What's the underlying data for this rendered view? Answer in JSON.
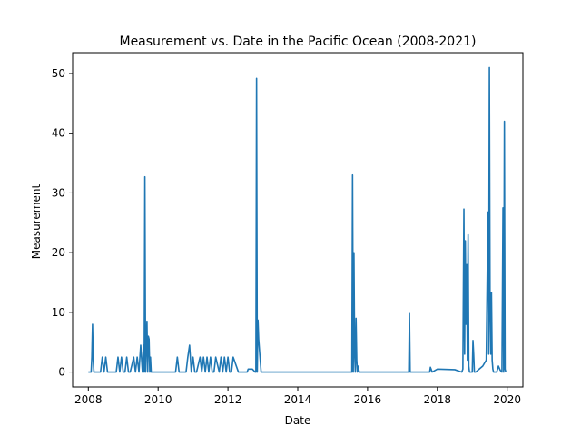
{
  "chart_data": {
    "type": "line",
    "title": "Measurement vs. Date in the Pacific Ocean (2008-2021)",
    "xlabel": "Date",
    "ylabel": "Measurement",
    "xlim": [
      2007.55,
      2020.45
    ],
    "ylim": [
      -2.5,
      53.5
    ],
    "xticks": [
      2008,
      2010,
      2012,
      2014,
      2016,
      2018,
      2020
    ],
    "xtick_labels": [
      "2008",
      "2010",
      "2012",
      "2014",
      "2016",
      "2018",
      "2020"
    ],
    "yticks": [
      0,
      10,
      20,
      30,
      40,
      50
    ],
    "ytick_labels": [
      "0",
      "10",
      "20",
      "30",
      "40",
      "50"
    ],
    "grid": false,
    "legend": "none",
    "series": [
      {
        "color": "#1f77b4",
        "x": [
          2008.0,
          2008.08,
          2008.1,
          2008.12,
          2008.14,
          2008.16,
          2008.18,
          2008.2,
          2008.35,
          2008.4,
          2008.45,
          2008.5,
          2008.55,
          2008.8,
          2008.85,
          2008.9,
          2008.95,
          2009.0,
          2009.05,
          2009.1,
          2009.15,
          2009.2,
          2009.3,
          2009.35,
          2009.4,
          2009.45,
          2009.5,
          2009.55,
          2009.58,
          2009.6,
          2009.62,
          2009.64,
          2009.66,
          2009.68,
          2009.7,
          2009.72,
          2009.74,
          2009.76,
          2009.78,
          2009.8,
          2009.82,
          2009.84,
          2009.86,
          2009.88,
          2009.9,
          2010.0,
          2010.5,
          2010.55,
          2010.6,
          2010.8,
          2010.85,
          2010.9,
          2010.95,
          2011.0,
          2011.05,
          2011.1,
          2011.2,
          2011.25,
          2011.3,
          2011.35,
          2011.4,
          2011.45,
          2011.5,
          2011.55,
          2011.6,
          2011.65,
          2011.75,
          2011.8,
          2011.85,
          2011.9,
          2011.95,
          2012.0,
          2012.05,
          2012.1,
          2012.15,
          2012.3,
          2012.45,
          2012.55,
          2012.58,
          2012.7,
          2012.78,
          2012.8,
          2012.82,
          2012.84,
          2012.86,
          2012.88,
          2012.95,
          2013.5,
          2014.0,
          2014.3,
          2015.0,
          2015.5,
          2015.55,
          2015.57,
          2015.59,
          2015.61,
          2015.63,
          2015.65,
          2015.67,
          2015.69,
          2015.71,
          2015.73,
          2015.76,
          2016.0,
          2016.5,
          2017.0,
          2017.18,
          2017.2,
          2017.22,
          2017.24,
          2017.3,
          2017.75,
          2017.78,
          2017.8,
          2017.82,
          2017.85,
          2018.0,
          2018.5,
          2018.7,
          2018.73,
          2018.76,
          2018.78,
          2018.8,
          2018.82,
          2018.84,
          2018.86,
          2018.88,
          2018.9,
          2018.92,
          2018.94,
          2018.96,
          2018.98,
          2019.0,
          2019.02,
          2019.04,
          2019.06,
          2019.1,
          2019.2,
          2019.3,
          2019.4,
          2019.45,
          2019.47,
          2019.49,
          2019.51,
          2019.53,
          2019.55,
          2019.57,
          2019.59,
          2019.61,
          2019.63,
          2019.65,
          2019.7,
          2019.75,
          2019.8,
          2019.85,
          2019.88,
          2019.9,
          2019.92,
          2019.94,
          2019.96
        ],
        "y": [
          0,
          0,
          2.5,
          8,
          2,
          0,
          0,
          0,
          0,
          2.5,
          0,
          2.5,
          0,
          0,
          2.5,
          0,
          2.5,
          0,
          0,
          2.5,
          0,
          0,
          2.5,
          0,
          2.5,
          0,
          4.5,
          0,
          4.5,
          0,
          32.7,
          0,
          4.5,
          8.5,
          0,
          6,
          5.5,
          0,
          2.5,
          0,
          0,
          0,
          0,
          0,
          0,
          0,
          0,
          2.5,
          0,
          0,
          2.5,
          4.5,
          0,
          2.5,
          0,
          0,
          2.5,
          0,
          2.5,
          0,
          2.5,
          0,
          2.5,
          0,
          0,
          2.5,
          0,
          2.5,
          0,
          2.5,
          0,
          2.5,
          0,
          0,
          2.5,
          0,
          0,
          0,
          0.5,
          0.5,
          0,
          0,
          49.2,
          0,
          8.7,
          5.5,
          0,
          0,
          0,
          0,
          0,
          0,
          0,
          33,
          0,
          20,
          3,
          0,
          9,
          2,
          0,
          1,
          0,
          0,
          0,
          0,
          0,
          9.8,
          0,
          0,
          0,
          0,
          0,
          0.8,
          0.5,
          0,
          0.5,
          0.4,
          0,
          0.5,
          27.3,
          3,
          22,
          8,
          18,
          2,
          23,
          1,
          0,
          0,
          0,
          0,
          0,
          5.3,
          3,
          0,
          0,
          0.5,
          1,
          2,
          26.8,
          3,
          51,
          10,
          3,
          13.3,
          2,
          0.5,
          0,
          0,
          0,
          0,
          1,
          0.3,
          0,
          27.5,
          0,
          42,
          0.5,
          0
        ]
      }
    ]
  }
}
